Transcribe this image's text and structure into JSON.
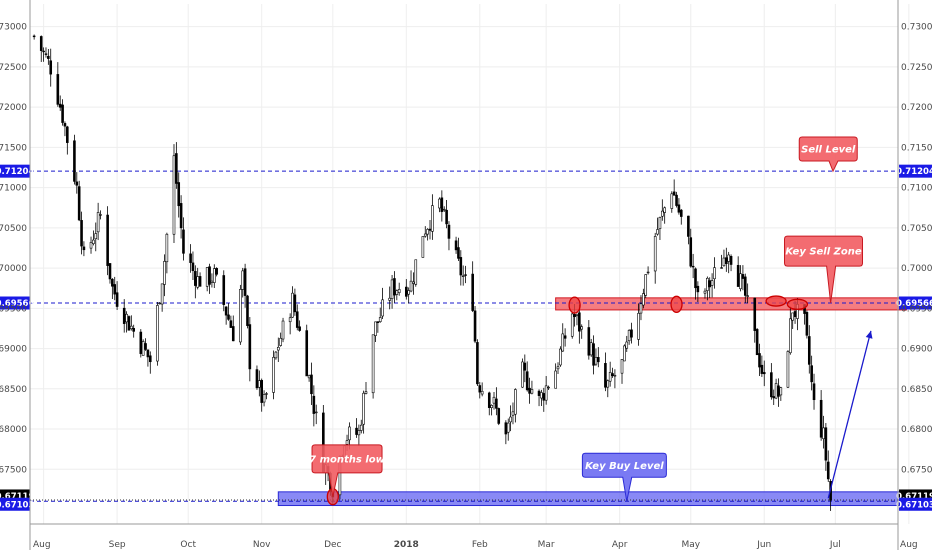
{
  "colors": {
    "background": "#ffffff",
    "grid": "#eeeeee",
    "candle": "#000000",
    "level_line": "#1a1acc",
    "sell_zone_fill": "#f25c62",
    "sell_zone_stroke": "#d11a22",
    "buy_zone_fill": "#6b6bf2",
    "buy_zone_stroke": "#2b2bd6",
    "label_blue": "#1a1ae6",
    "label_black": "#000000",
    "arrow": "#1a1acc"
  },
  "chart_data": {
    "type": "candlestick",
    "title": "",
    "xlabel": "",
    "ylabel": "",
    "ylim": [
      0.6695,
      0.731
    ],
    "grid": true,
    "y_ticks": [
      "0.73000",
      "0.72500",
      "0.72000",
      "0.71500",
      "0.71000",
      "0.70500",
      "0.70000",
      "0.69500",
      "0.69000",
      "0.68500",
      "0.68000",
      "0.67500"
    ],
    "x_ticks": [
      "Aug",
      "Sep",
      "Oct",
      "Nov",
      "Dec",
      "2018",
      "Feb",
      "Mar",
      "Apr",
      "May",
      "Jun",
      "Jul",
      "Aug"
    ],
    "levels": [
      {
        "name": "sell-level",
        "value": 0.71204,
        "label": "0.71204",
        "style": "dashed",
        "badge": "blue"
      },
      {
        "name": "key-sell-zone-level",
        "value": 0.69566,
        "label": "0.69566",
        "style": "dashed",
        "badge": "blue"
      },
      {
        "name": "current-price",
        "value": 0.67119,
        "label": "0.67119",
        "style": "dotted",
        "badge": "black"
      },
      {
        "name": "key-buy-level",
        "value": 0.67103,
        "label": "0.67103",
        "style": "dashed",
        "badge": "blue"
      }
    ],
    "zones": [
      {
        "name": "sell-zone",
        "from": "2018-03-05",
        "to": "2018-07-31",
        "low": 0.6948,
        "high": 0.6963
      },
      {
        "name": "buy-zone",
        "from": "2017-11-08",
        "to": "2018-08-10",
        "low": 0.6705,
        "high": 0.6722
      }
    ],
    "markers": [
      {
        "date": "2017-12-01",
        "value": 0.6716,
        "shape": "circle"
      },
      {
        "date": "2018-03-13",
        "value": 0.6954,
        "shape": "circle"
      },
      {
        "date": "2018-04-25",
        "value": 0.6955,
        "shape": "circle"
      },
      {
        "date": "2018-06-06",
        "value": 0.6959,
        "shape": "ellipse"
      },
      {
        "date": "2018-06-15",
        "value": 0.6955,
        "shape": "ellipse"
      }
    ],
    "annotations": [
      {
        "text": "Sell Level",
        "date": "2018-06-28",
        "value": 0.7148,
        "style": "red"
      },
      {
        "text": "Key Sell Zone",
        "date": "2018-06-26",
        "value": 0.7021,
        "style": "red"
      },
      {
        "text": "7 months low",
        "date": "2017-12-07",
        "value": 0.6763,
        "style": "red"
      },
      {
        "text": "Key Buy Level",
        "date": "2018-04-03",
        "value": 0.6755,
        "style": "blue"
      }
    ],
    "projection": {
      "from": {
        "date": "2018-06-28",
        "value": 0.6714
      },
      "to": {
        "date": "2018-07-16",
        "value": 0.6922
      }
    },
    "anchors": [
      [
        "2017-07-28",
        0.7288
      ],
      [
        "2017-08-04",
        0.725
      ],
      [
        "2017-08-09",
        0.719
      ],
      [
        "2017-08-15",
        0.71
      ],
      [
        "2017-08-18",
        0.701
      ],
      [
        "2017-08-25",
        0.7065
      ],
      [
        "2017-08-30",
        0.6975
      ],
      [
        "2017-09-06",
        0.6932
      ],
      [
        "2017-09-15",
        0.6885
      ],
      [
        "2017-09-21",
        0.701
      ],
      [
        "2017-09-25",
        0.7135
      ],
      [
        "2017-09-29",
        0.702
      ],
      [
        "2017-10-05",
        0.6985
      ],
      [
        "2017-10-12",
        0.699
      ],
      [
        "2017-10-20",
        0.692
      ],
      [
        "2017-10-24",
        0.699
      ],
      [
        "2017-10-27",
        0.6885
      ],
      [
        "2017-11-02",
        0.683
      ],
      [
        "2017-11-08",
        0.6905
      ],
      [
        "2017-11-14",
        0.696
      ],
      [
        "2017-11-20",
        0.688
      ],
      [
        "2017-11-27",
        0.676
      ],
      [
        "2017-12-01",
        0.6728
      ],
      [
        "2017-12-06",
        0.679
      ],
      [
        "2017-12-12",
        0.6795
      ],
      [
        "2017-12-18",
        0.692
      ],
      [
        "2017-12-26",
        0.6975
      ],
      [
        "2018-01-03",
        0.698
      ],
      [
        "2018-01-08",
        0.7045
      ],
      [
        "2018-01-15",
        0.708
      ],
      [
        "2018-01-22",
        0.701
      ],
      [
        "2018-01-29",
        0.696
      ],
      [
        "2018-01-31",
        0.686
      ],
      [
        "2018-02-07",
        0.683
      ],
      [
        "2018-02-12",
        0.679
      ],
      [
        "2018-02-19",
        0.687
      ],
      [
        "2018-02-26",
        0.6835
      ],
      [
        "2018-03-05",
        0.6875
      ],
      [
        "2018-03-12",
        0.6945
      ],
      [
        "2018-03-19",
        0.6905
      ],
      [
        "2018-03-26",
        0.685
      ],
      [
        "2018-04-02",
        0.688
      ],
      [
        "2018-04-09",
        0.695
      ],
      [
        "2018-04-16",
        0.704
      ],
      [
        "2018-04-23",
        0.71
      ],
      [
        "2018-04-30",
        0.703
      ],
      [
        "2018-05-04",
        0.696
      ],
      [
        "2018-05-10",
        0.6985
      ],
      [
        "2018-05-17",
        0.7025
      ],
      [
        "2018-05-24",
        0.6965
      ],
      [
        "2018-06-01",
        0.686
      ],
      [
        "2018-06-08",
        0.684
      ],
      [
        "2018-06-13",
        0.695
      ],
      [
        "2018-06-18",
        0.693
      ],
      [
        "2018-06-22",
        0.683
      ],
      [
        "2018-06-26",
        0.679
      ],
      [
        "2018-06-29",
        0.6712
      ]
    ]
  }
}
